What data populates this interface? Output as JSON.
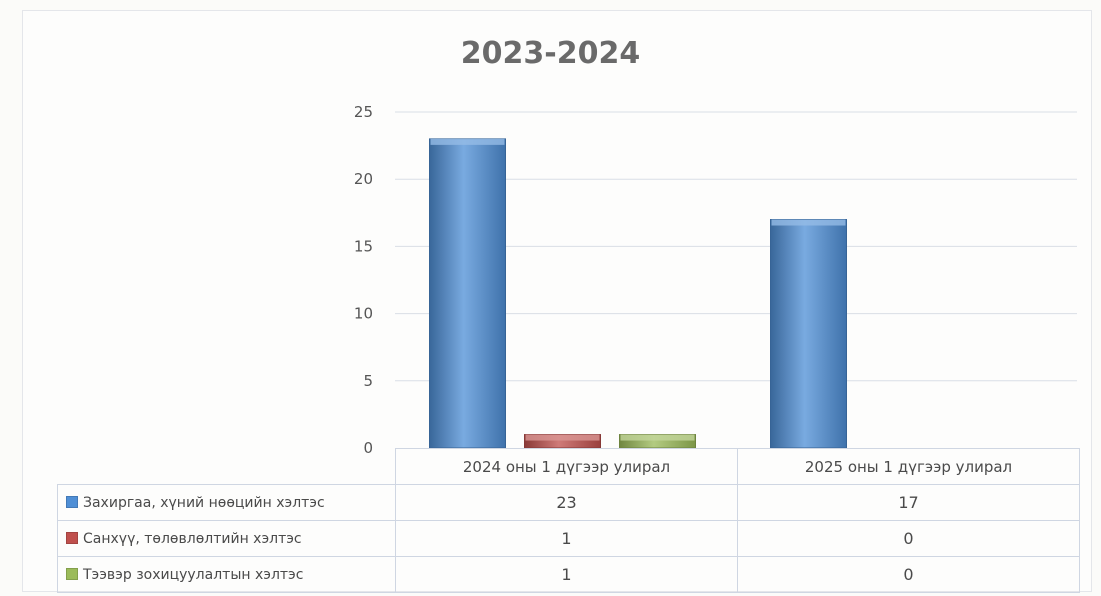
{
  "chart_data": {
    "type": "bar",
    "title": "2023-2024",
    "categories": [
      "2024 оны 1 дүгээр улирал",
      "2025 оны 1 дүгээр улирал"
    ],
    "series": [
      {
        "name": "Захиргаа, хүний нөөцийн хэлтэс",
        "values": [
          23,
          17
        ],
        "color": "#4f8fd6"
      },
      {
        "name": "Санхүү, төлөвлөлтийн хэлтэс",
        "values": [
          1,
          0
        ],
        "color": "#c0504d"
      },
      {
        "name": "Тээвэр зохицуулалтын хэлтэс",
        "values": [
          1,
          0
        ],
        "color": "#9bbb59"
      }
    ],
    "ylim": [
      0,
      25
    ],
    "yticks": [
      0,
      5,
      10,
      15,
      20,
      25
    ],
    "grid": true,
    "legend": "data-table"
  }
}
